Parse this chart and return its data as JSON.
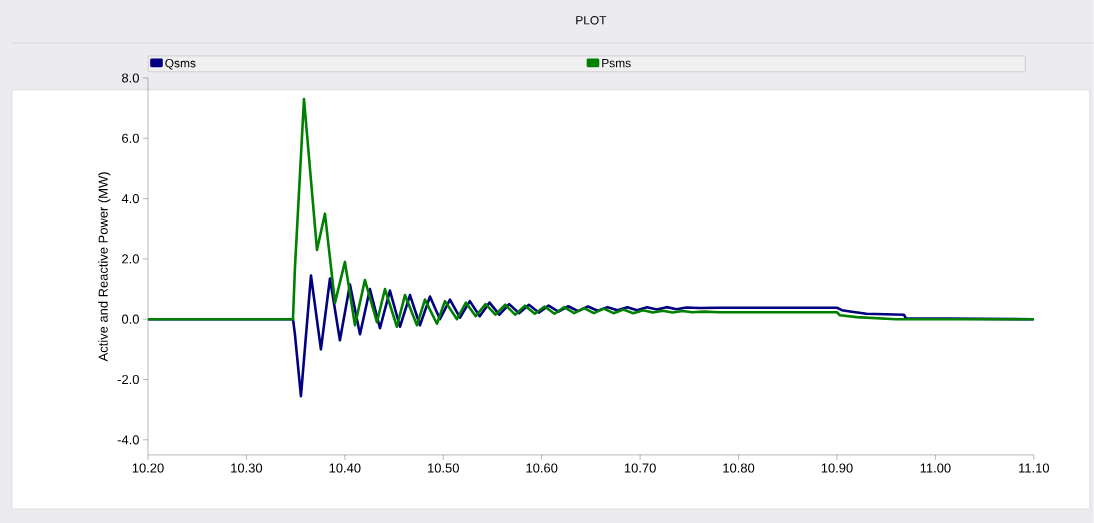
{
  "chart_data": {
    "type": "line",
    "title": "PLOT",
    "ylabel": "Active and Reactive Power (MW)",
    "legend": "top",
    "xlim": [
      10.2,
      11.1
    ],
    "ylim": [
      -4.5,
      8.0
    ],
    "xticks": [
      {
        "value": 10.2,
        "label": "10.20"
      },
      {
        "value": 10.3,
        "label": "10.30"
      },
      {
        "value": 10.4,
        "label": "10.40"
      },
      {
        "value": 10.5,
        "label": "10.50"
      },
      {
        "value": 10.6,
        "label": "10.60"
      },
      {
        "value": 10.7,
        "label": "10.70"
      },
      {
        "value": 10.8,
        "label": "10.80"
      },
      {
        "value": 10.9,
        "label": "10.90"
      },
      {
        "value": 11.0,
        "label": "11.00"
      },
      {
        "value": 11.1,
        "label": "11.10"
      }
    ],
    "yticks": [
      {
        "value": -4,
        "label": "-4.0"
      },
      {
        "value": -2,
        "label": "-2.0"
      },
      {
        "value": 0,
        "label": "0.0"
      },
      {
        "value": 2,
        "label": "2.0"
      },
      {
        "value": 4,
        "label": "4.0"
      },
      {
        "value": 6,
        "label": "6.0"
      },
      {
        "value": 8,
        "label": "8.0"
      }
    ],
    "series": [
      {
        "name": "Qsms",
        "color": "#000080",
        "x": [
          10.2,
          10.3473,
          10.3493,
          10.3554,
          10.3656,
          10.3757,
          10.3849,
          10.395,
          10.4052,
          10.4154,
          10.4255,
          10.4357,
          10.4458,
          10.456,
          10.4662,
          10.4763,
          10.4865,
          10.4966,
          10.5068,
          10.517,
          10.527,
          10.537,
          10.547,
          10.557,
          10.567,
          10.577,
          10.587,
          10.597,
          10.607,
          10.617,
          10.627,
          10.637,
          10.647,
          10.657,
          10.667,
          10.677,
          10.687,
          10.697,
          10.707,
          10.717,
          10.727,
          10.737,
          10.747,
          10.76,
          10.78,
          10.9,
          10.905,
          10.915,
          10.93,
          10.968,
          10.97,
          11.1
        ],
        "values": [
          0,
          0,
          -0.5,
          -2.55,
          1.45,
          -1.0,
          1.35,
          -0.7,
          1.15,
          -0.5,
          1.0,
          -0.3,
          0.95,
          -0.25,
          0.8,
          -0.2,
          0.75,
          0.0,
          0.65,
          0.05,
          0.6,
          0.1,
          0.55,
          0.15,
          0.5,
          0.2,
          0.48,
          0.22,
          0.45,
          0.25,
          0.43,
          0.27,
          0.42,
          0.28,
          0.4,
          0.3,
          0.4,
          0.3,
          0.4,
          0.32,
          0.4,
          0.33,
          0.39,
          0.37,
          0.38,
          0.38,
          0.3,
          0.25,
          0.18,
          0.15,
          0.03,
          0.0
        ]
      },
      {
        "name": "Psms",
        "color": "#008000",
        "x": [
          10.2,
          10.3473,
          10.3493,
          10.3585,
          10.3717,
          10.3798,
          10.39,
          10.4001,
          10.4103,
          10.4204,
          10.4326,
          10.4408,
          10.4529,
          10.4611,
          10.4733,
          10.4814,
          10.4936,
          10.5017,
          10.5139,
          10.523,
          10.533,
          10.543,
          10.553,
          10.563,
          10.573,
          10.583,
          10.593,
          10.603,
          10.613,
          10.623,
          10.633,
          10.643,
          10.653,
          10.663,
          10.673,
          10.683,
          10.693,
          10.703,
          10.713,
          10.723,
          10.733,
          10.743,
          10.753,
          10.765,
          10.78,
          10.9,
          10.903,
          10.92,
          10.96,
          11.1
        ],
        "values": [
          0,
          0,
          1.7,
          7.3,
          2.3,
          3.5,
          0.55,
          1.9,
          -0.2,
          1.3,
          -0.1,
          1.0,
          -0.25,
          0.8,
          -0.2,
          0.65,
          -0.15,
          0.6,
          0.0,
          0.55,
          0.1,
          0.5,
          0.15,
          0.48,
          0.15,
          0.45,
          0.18,
          0.42,
          0.18,
          0.4,
          0.2,
          0.37,
          0.2,
          0.35,
          0.2,
          0.32,
          0.2,
          0.3,
          0.22,
          0.28,
          0.22,
          0.27,
          0.23,
          0.25,
          0.23,
          0.23,
          0.13,
          0.07,
          0.0,
          0.0
        ]
      }
    ]
  }
}
